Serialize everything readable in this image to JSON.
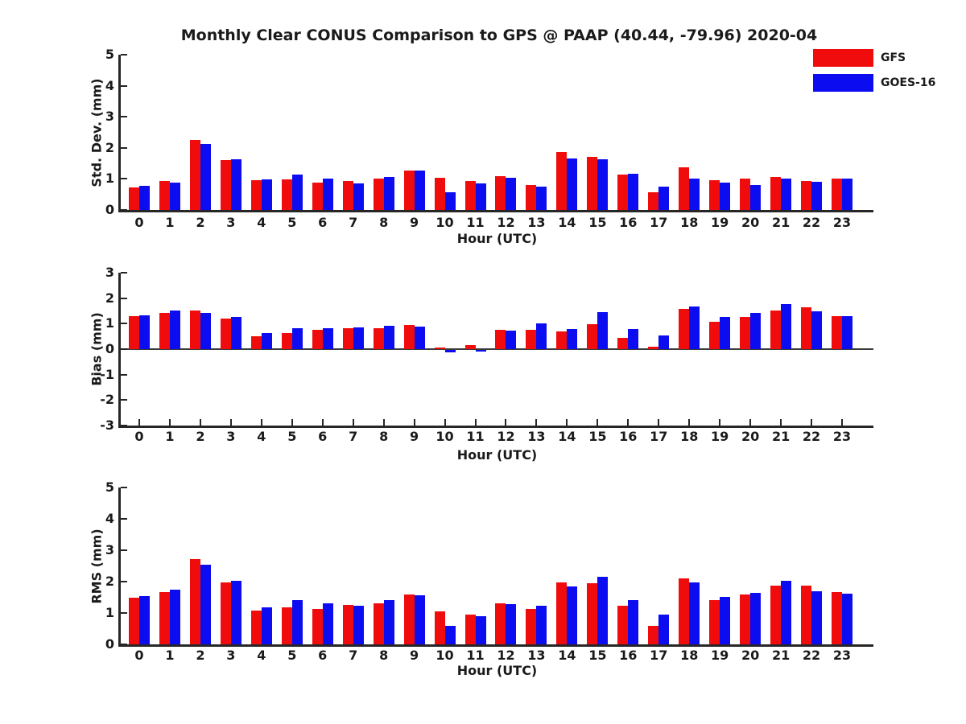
{
  "title": "Monthly Clear CONUS Comparison to GPS @ PAAP (40.44, -79.96) 2020-04",
  "legend": {
    "position": "top-right",
    "items": [
      {
        "label": "GFS",
        "color": "#f00c0c"
      },
      {
        "label": "GOES-16",
        "color": "#0c0cf0"
      }
    ]
  },
  "colors": {
    "gfs": "#f00c0c",
    "goes16": "#0c0cf0",
    "axis": "#262626",
    "text": "#1a1a1a",
    "zero_line": "#3a3a3a",
    "background": "#ffffff"
  },
  "chart_data": [
    {
      "type": "bar",
      "title": "",
      "ylabel": "Std. Dev. (mm)",
      "xlabel": "Hour (UTC)",
      "ylim": [
        0,
        5
      ],
      "yticks": [
        0,
        1,
        2,
        3,
        4,
        5
      ],
      "grid": false,
      "legend_position": "top-right",
      "categories": [
        "0",
        "1",
        "2",
        "3",
        "4",
        "5",
        "6",
        "7",
        "8",
        "9",
        "10",
        "11",
        "12",
        "13",
        "14",
        "15",
        "16",
        "17",
        "18",
        "19",
        "20",
        "21",
        "22",
        "23"
      ],
      "series": [
        {
          "name": "GFS",
          "color": "#f00c0c",
          "values": [
            0.72,
            0.92,
            2.25,
            1.6,
            0.95,
            0.98,
            0.87,
            0.94,
            1.0,
            1.26,
            1.03,
            0.93,
            1.08,
            0.81,
            1.87,
            1.7,
            1.15,
            0.58,
            1.38,
            0.95,
            1.0,
            1.06,
            0.93,
            1.02
          ]
        },
        {
          "name": "GOES-16",
          "color": "#0c0cf0",
          "values": [
            0.79,
            0.89,
            2.13,
            1.62,
            0.98,
            1.14,
            1.01,
            0.86,
            1.05,
            1.26,
            0.58,
            0.86,
            1.03,
            0.76,
            1.67,
            1.62,
            1.16,
            0.76,
            1.02,
            0.87,
            0.8,
            1.0,
            0.9,
            1.0
          ]
        }
      ]
    },
    {
      "type": "bar",
      "title": "",
      "ylabel": "Bias (mm)",
      "xlabel": "Hour (UTC)",
      "ylim": [
        -3,
        3
      ],
      "yticks": [
        -3,
        -2,
        -1,
        0,
        1,
        2,
        3
      ],
      "grid": false,
      "categories": [
        "0",
        "1",
        "2",
        "3",
        "4",
        "5",
        "6",
        "7",
        "8",
        "9",
        "10",
        "11",
        "12",
        "13",
        "14",
        "15",
        "16",
        "17",
        "18",
        "19",
        "20",
        "21",
        "22",
        "23"
      ],
      "series": [
        {
          "name": "GFS",
          "color": "#f00c0c",
          "values": [
            1.3,
            1.42,
            1.52,
            1.2,
            0.5,
            0.62,
            0.75,
            0.83,
            0.83,
            0.95,
            0.07,
            0.15,
            0.75,
            0.75,
            0.7,
            0.97,
            0.45,
            0.1,
            1.57,
            1.08,
            1.27,
            1.53,
            1.63,
            1.31
          ]
        },
        {
          "name": "GOES-16",
          "color": "#0c0cf0",
          "values": [
            1.32,
            1.52,
            1.42,
            1.26,
            0.62,
            0.83,
            0.83,
            0.85,
            0.92,
            0.9,
            -0.08,
            -0.06,
            0.72,
            1.0,
            0.8,
            1.45,
            0.78,
            0.55,
            1.67,
            1.25,
            1.42,
            1.76,
            1.47,
            1.28
          ]
        }
      ]
    },
    {
      "type": "bar",
      "title": "",
      "ylabel": "RMS (mm)",
      "xlabel": "Hour (UTC)",
      "ylim": [
        0,
        5
      ],
      "yticks": [
        0,
        1,
        2,
        3,
        4,
        5
      ],
      "grid": false,
      "categories": [
        "0",
        "1",
        "2",
        "3",
        "4",
        "5",
        "6",
        "7",
        "8",
        "9",
        "10",
        "11",
        "12",
        "13",
        "14",
        "15",
        "16",
        "17",
        "18",
        "19",
        "20",
        "21",
        "22",
        "23"
      ],
      "series": [
        {
          "name": "GFS",
          "color": "#f00c0c",
          "values": [
            1.48,
            1.66,
            2.72,
            1.98,
            1.07,
            1.17,
            1.12,
            1.25,
            1.3,
            1.6,
            1.04,
            0.95,
            1.32,
            1.12,
            1.97,
            1.94,
            1.22,
            0.58,
            2.1,
            1.42,
            1.58,
            1.86,
            1.88,
            1.66
          ]
        },
        {
          "name": "GOES-16",
          "color": "#0c0cf0",
          "values": [
            1.55,
            1.75,
            2.55,
            2.02,
            1.17,
            1.42,
            1.31,
            1.23,
            1.4,
            1.56,
            0.6,
            0.89,
            1.28,
            1.24,
            1.84,
            2.15,
            1.4,
            0.94,
            1.97,
            1.51,
            1.64,
            2.02,
            1.7,
            1.61
          ]
        }
      ]
    }
  ]
}
